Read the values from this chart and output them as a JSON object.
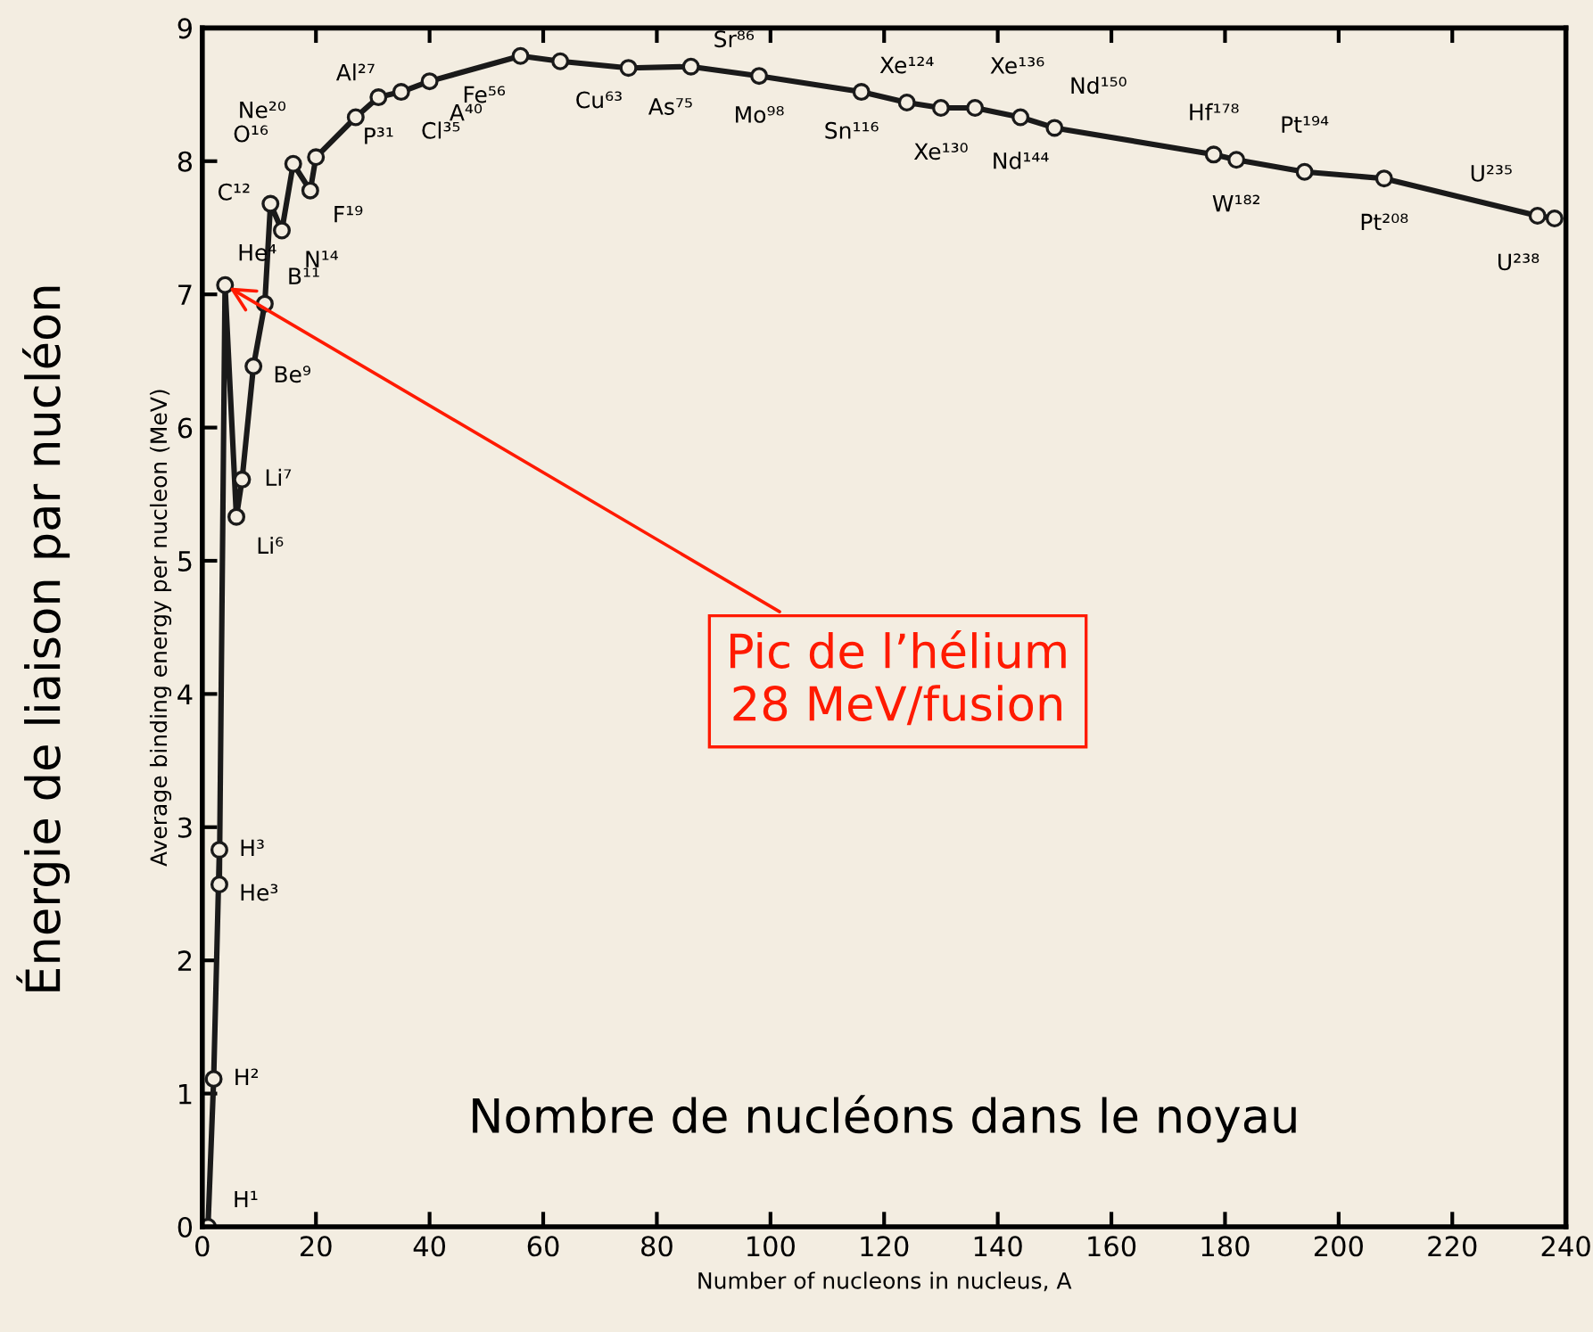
{
  "chart_data": {
    "type": "line",
    "xlabel": "Number of nucleons in nucleus, A",
    "ylabel": "Average binding energy per nucleon (MeV)",
    "x": [
      1,
      2,
      3,
      3,
      4,
      6,
      7,
      9,
      11,
      12,
      14,
      16,
      19,
      20,
      27,
      31,
      35,
      40,
      56,
      63,
      75,
      86,
      98,
      116,
      124,
      130,
      136,
      144,
      150,
      178,
      182,
      194,
      208,
      235,
      238
    ],
    "series": [
      {
        "color": "#1a1a1a",
        "values": [
          0,
          1.11,
          2.83,
          2.57,
          7.07,
          5.33,
          5.61,
          6.46,
          6.93,
          7.68,
          7.48,
          7.98,
          7.78,
          8.03,
          8.33,
          8.48,
          8.52,
          8.6,
          8.79,
          8.75,
          8.7,
          8.71,
          8.64,
          8.52,
          8.44,
          8.4,
          8.4,
          8.33,
          8.25,
          8.05,
          8.01,
          7.92,
          7.87,
          7.59,
          7.57
        ]
      }
    ],
    "xlim": [
      0,
      240
    ],
    "ylim": [
      0,
      9
    ],
    "xticks": [
      0,
      20,
      40,
      60,
      80,
      100,
      120,
      140,
      160,
      180,
      200,
      220,
      240
    ],
    "yticks": [
      0,
      1,
      2,
      3,
      4,
      5,
      6,
      7,
      8,
      9
    ],
    "marker": "circle",
    "grid": false,
    "legend": false,
    "annotations": [
      {
        "text": "Pic de l’hélium\n28 MeV/fusion",
        "x": 4,
        "y": 7.07
      },
      "Nombre de nucléons dans le noyau",
      "Énergie de liaison par nucléon",
      {
        "text": "H¹",
        "x": 1,
        "y": 0
      },
      {
        "text": "H²",
        "x": 2,
        "y": 1.11
      },
      {
        "text": "H³",
        "x": 3,
        "y": 2.83
      },
      {
        "text": "He³",
        "x": 3,
        "y": 2.57
      },
      {
        "text": "He⁴",
        "x": 4,
        "y": 7.07
      },
      {
        "text": "Li⁶",
        "x": 6,
        "y": 5.33
      },
      {
        "text": "Li⁷",
        "x": 7,
        "y": 5.61
      },
      {
        "text": "Be⁹",
        "x": 9,
        "y": 6.46
      },
      {
        "text": "B¹¹",
        "x": 11,
        "y": 6.93
      },
      {
        "text": "C¹²",
        "x": 12,
        "y": 7.68
      },
      {
        "text": "N¹⁴",
        "x": 14,
        "y": 7.48
      },
      {
        "text": "O¹⁶",
        "x": 16,
        "y": 7.98
      },
      {
        "text": "F¹⁹",
        "x": 19,
        "y": 7.78
      },
      {
        "text": "Ne²⁰",
        "x": 20,
        "y": 8.03
      },
      {
        "text": "Al²⁷",
        "x": 27,
        "y": 8.33
      },
      {
        "text": "P³¹",
        "x": 31,
        "y": 8.48
      },
      {
        "text": "Cl³⁵",
        "x": 35,
        "y": 8.52
      },
      {
        "text": "A⁴⁰",
        "x": 40,
        "y": 8.6
      },
      {
        "text": "Fe⁵⁶",
        "x": 56,
        "y": 8.79
      },
      {
        "text": "Cu⁶³",
        "x": 63,
        "y": 8.75
      },
      {
        "text": "As⁷⁵",
        "x": 75,
        "y": 8.7
      },
      {
        "text": "Sr⁸⁶",
        "x": 86,
        "y": 8.71
      },
      {
        "text": "Mo⁹⁸",
        "x": 98,
        "y": 8.64
      },
      {
        "text": "Sn¹¹⁶",
        "x": 116,
        "y": 8.52
      },
      {
        "text": "Xe¹²⁴",
        "x": 124,
        "y": 8.44
      },
      {
        "text": "Xe¹³⁰",
        "x": 130,
        "y": 8.4
      },
      {
        "text": "Xe¹³⁶",
        "x": 136,
        "y": 8.4
      },
      {
        "text": "Nd¹⁴⁴",
        "x": 144,
        "y": 8.33
      },
      {
        "text": "Nd¹⁵⁰",
        "x": 150,
        "y": 8.25
      },
      {
        "text": "Hf¹⁷⁸",
        "x": 178,
        "y": 8.05
      },
      {
        "text": "W¹⁸²",
        "x": 182,
        "y": 8.01
      },
      {
        "text": "Pt¹⁹⁴",
        "x": 194,
        "y": 7.92
      },
      {
        "text": "Pt²⁰⁸",
        "x": 208,
        "y": 7.87
      },
      {
        "text": "U²³⁵",
        "x": 235,
        "y": 7.59
      },
      {
        "text": "U²³⁸",
        "x": 238,
        "y": 7.57
      }
    ]
  }
}
